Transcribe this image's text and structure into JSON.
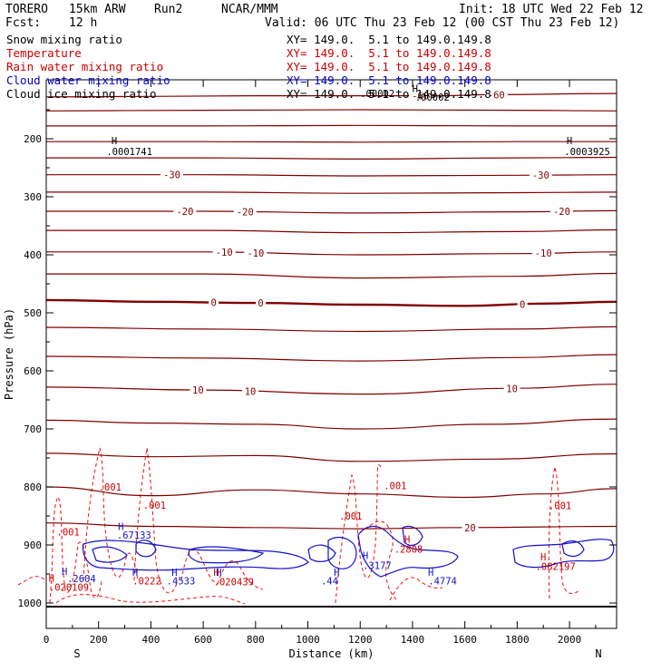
{
  "header": {
    "model": "TORERO",
    "resolution": "15km ARW",
    "run": "Run2",
    "org": "NCAR/MMM",
    "init": "Init: 18 UTC Wed 22 Feb 12",
    "fcst_label": "Fcst:",
    "fcst_value": "12 h",
    "valid": "Valid: 06 UTC Thu 23 Feb 12 (00 CST Thu 23 Feb 12)"
  },
  "legend": [
    {
      "label": "Snow mixing ratio",
      "xy": "XY= 149.0.  5.1 to 149.0.149.8",
      "color": "#000000"
    },
    {
      "label": "Temperature",
      "xy": "XY= 149.0.  5.1 to 149.0.149.8",
      "color": "#cc0000"
    },
    {
      "label": "Rain water mixing ratio",
      "xy": "XY= 149.0.  5.1 to 149.0.149.8",
      "color": "#cc0000"
    },
    {
      "label": "Cloud water mixing ratio",
      "xy": "XY= 149.0.  5.1 to 149.0.149.8",
      "color": "#0000cc"
    },
    {
      "label": "Cloud ice mixing ratio",
      "xy": "XY= 149.0.  5.1 to 149.0.149.8",
      "color": "#000000"
    }
  ],
  "colors": {
    "temperature": "#800000",
    "zero_line": "#800000",
    "rain": "#ee1111",
    "cloud_water": "#1111cc",
    "axis": "#000000"
  },
  "chart_data": {
    "type": "cross-section contour",
    "xlabel": "Distance (km)",
    "ylabel": "Pressure (hPa)",
    "xlim": [
      0,
      2180
    ],
    "ylim": [
      1050,
      105
    ],
    "x_ticks": [
      0,
      200,
      400,
      600,
      800,
      1000,
      1200,
      1400,
      1600,
      1800,
      2000
    ],
    "y_ticks": [
      200,
      300,
      400,
      500,
      600,
      700,
      800,
      900,
      1000
    ],
    "end_labels": {
      "left": "S",
      "right": "N"
    },
    "temperature_isotherms": [
      {
        "label": "-60",
        "points": [
          [
            0,
            128
          ],
          [
            400,
            127
          ],
          [
            800,
            126
          ],
          [
            1200,
            126
          ],
          [
            1500,
            126
          ],
          [
            1700,
            124
          ],
          [
            2180,
            122
          ]
        ],
        "labels_at": [
          1430,
          1720
        ]
      },
      {
        "label": "",
        "points": [
          [
            0,
            152
          ],
          [
            600,
            151
          ],
          [
            1200,
            150
          ],
          [
            1800,
            151
          ],
          [
            2180,
            152
          ]
        ],
        "labels_at": []
      },
      {
        "label": "",
        "points": [
          [
            0,
            178
          ],
          [
            600,
            178
          ],
          [
            1200,
            177
          ],
          [
            1800,
            178
          ],
          [
            2180,
            178
          ]
        ],
        "labels_at": []
      },
      {
        "label": "",
        "points": [
          [
            0,
            205
          ],
          [
            600,
            205
          ],
          [
            1200,
            206
          ],
          [
            1800,
            205
          ],
          [
            2180,
            205
          ]
        ],
        "labels_at": []
      },
      {
        "label": "",
        "points": [
          [
            0,
            233
          ],
          [
            600,
            233
          ],
          [
            1200,
            235
          ],
          [
            1800,
            233
          ],
          [
            2180,
            232
          ]
        ],
        "labels_at": []
      },
      {
        "label": "-30",
        "points": [
          [
            0,
            262
          ],
          [
            600,
            262
          ],
          [
            1200,
            264
          ],
          [
            1800,
            263
          ],
          [
            2180,
            262
          ]
        ],
        "labels_at": [
          480,
          1890
        ]
      },
      {
        "label": "",
        "points": [
          [
            0,
            292
          ],
          [
            600,
            292
          ],
          [
            1200,
            294
          ],
          [
            1800,
            293
          ],
          [
            2180,
            292
          ]
        ],
        "labels_at": []
      },
      {
        "label": "-20",
        "points": [
          [
            0,
            325
          ],
          [
            600,
            325
          ],
          [
            1200,
            328
          ],
          [
            1800,
            326
          ],
          [
            2180,
            324
          ]
        ],
        "labels_at": [
          530,
          760,
          1970
        ]
      },
      {
        "label": "",
        "points": [
          [
            0,
            358
          ],
          [
            600,
            358
          ],
          [
            1200,
            362
          ],
          [
            1800,
            360
          ],
          [
            2180,
            357
          ]
        ],
        "labels_at": []
      },
      {
        "label": "-10",
        "points": [
          [
            0,
            395
          ],
          [
            600,
            395
          ],
          [
            1200,
            400
          ],
          [
            1800,
            398
          ],
          [
            2180,
            395
          ]
        ],
        "labels_at": [
          680,
          800,
          1900
        ]
      },
      {
        "label": "",
        "points": [
          [
            0,
            433
          ],
          [
            600,
            433
          ],
          [
            1200,
            440
          ],
          [
            1800,
            437
          ],
          [
            2180,
            432
          ]
        ],
        "labels_at": []
      },
      {
        "label": "0",
        "points": [
          [
            0,
            478
          ],
          [
            400,
            481
          ],
          [
            800,
            483
          ],
          [
            1200,
            486
          ],
          [
            1600,
            488
          ],
          [
            1900,
            484
          ],
          [
            2180,
            481
          ]
        ],
        "labels_at": [
          640,
          820,
          1820
        ]
      },
      {
        "label": "",
        "points": [
          [
            0,
            525
          ],
          [
            600,
            528
          ],
          [
            1200,
            532
          ],
          [
            1800,
            528
          ],
          [
            2180,
            524
          ]
        ],
        "labels_at": []
      },
      {
        "label": "",
        "points": [
          [
            0,
            575
          ],
          [
            600,
            578
          ],
          [
            1200,
            583
          ],
          [
            1800,
            577
          ],
          [
            2180,
            572
          ]
        ],
        "labels_at": []
      },
      {
        "label": "10",
        "points": [
          [
            0,
            628
          ],
          [
            600,
            633
          ],
          [
            1200,
            640
          ],
          [
            1800,
            630
          ],
          [
            2180,
            623
          ]
        ],
        "labels_at": [
          580,
          780,
          1780
        ]
      },
      {
        "label": "",
        "points": [
          [
            0,
            685
          ],
          [
            400,
            690
          ],
          [
            800,
            692
          ],
          [
            1200,
            700
          ],
          [
            1700,
            692
          ],
          [
            2180,
            683
          ]
        ],
        "labels_at": []
      },
      {
        "label": "",
        "points": [
          [
            0,
            742
          ],
          [
            400,
            748
          ],
          [
            800,
            746
          ],
          [
            1200,
            756
          ],
          [
            1700,
            752
          ],
          [
            2180,
            743
          ]
        ],
        "labels_at": []
      },
      {
        "label": "",
        "points": [
          [
            0,
            800
          ],
          [
            400,
            815
          ],
          [
            800,
            805
          ],
          [
            1200,
            812
          ],
          [
            1600,
            818
          ],
          [
            1900,
            812
          ],
          [
            2180,
            803
          ]
        ],
        "labels_at": []
      },
      {
        "label": "20",
        "points": [
          [
            0,
            862
          ],
          [
            400,
            868
          ],
          [
            800,
            870
          ],
          [
            1200,
            872
          ],
          [
            1600,
            870
          ],
          [
            2180,
            868
          ]
        ],
        "labels_at": [
          1620
        ]
      }
    ],
    "rain_water_labels": [
      {
        "text": ".001",
        "x": 200,
        "p": 800
      },
      {
        "text": ".001",
        "x": 370,
        "p": 831
      },
      {
        "text": ".001",
        "x": 40,
        "p": 877
      },
      {
        "text": ".001",
        "x": 1290,
        "p": 798
      },
      {
        "text": ".001",
        "x": 1120,
        "p": 850
      },
      {
        "text": ".001",
        "x": 1920,
        "p": 832
      },
      {
        "text": ".020109",
        "x": 10,
        "p": 973
      },
      {
        "text": ".0222",
        "x": 330,
        "p": 962
      },
      {
        "text": ".020439",
        "x": 640,
        "p": 963
      },
      {
        "text": ".2808",
        "x": 1330,
        "p": 907
      },
      {
        "text": ".082197",
        "x": 1870,
        "p": 937
      }
    ],
    "cloud_water_labels": [
      {
        "text": ".67133",
        "x": 270,
        "p": 883
      },
      {
        "text": ".2604",
        "x": 80,
        "p": 958
      },
      {
        "text": ".4533",
        "x": 460,
        "p": 962
      },
      {
        "text": ".3177",
        "x": 1210,
        "p": 935
      },
      {
        "text": ".44",
        "x": 1050,
        "p": 962
      },
      {
        "text": ".4774",
        "x": 1460,
        "p": 962
      }
    ],
    "ice_labels": [
      {
        "text": ".0001741",
        "x": 230,
        "p": 222
      },
      {
        "text": ".0003925",
        "x": 1980,
        "p": 222
      },
      {
        "text": ".00002",
        "x": 1410,
        "p": 128
      },
      {
        "text": ".00002",
        "x": 1200,
        "p": 122
      }
    ],
    "h_markers": [
      {
        "x": 260,
        "p": 203,
        "color": "black"
      },
      {
        "x": 2000,
        "p": 203,
        "color": "black"
      },
      {
        "x": 1410,
        "p": 113,
        "color": "black"
      },
      {
        "x": 70,
        "p": 945,
        "color": "blue"
      },
      {
        "x": 285,
        "p": 868,
        "color": "blue"
      },
      {
        "x": 340,
        "p": 947,
        "color": "blue"
      },
      {
        "x": 490,
        "p": 947,
        "color": "blue"
      },
      {
        "x": 660,
        "p": 947,
        "color": "blue"
      },
      {
        "x": 1110,
        "p": 947,
        "color": "blue"
      },
      {
        "x": 1220,
        "p": 918,
        "color": "blue"
      },
      {
        "x": 1470,
        "p": 947,
        "color": "blue"
      },
      {
        "x": 1380,
        "p": 890,
        "color": "red"
      },
      {
        "x": 650,
        "p": 947,
        "color": "red"
      },
      {
        "x": 1900,
        "p": 920,
        "color": "red"
      },
      {
        "x": 20,
        "p": 957,
        "color": "red"
      }
    ]
  }
}
